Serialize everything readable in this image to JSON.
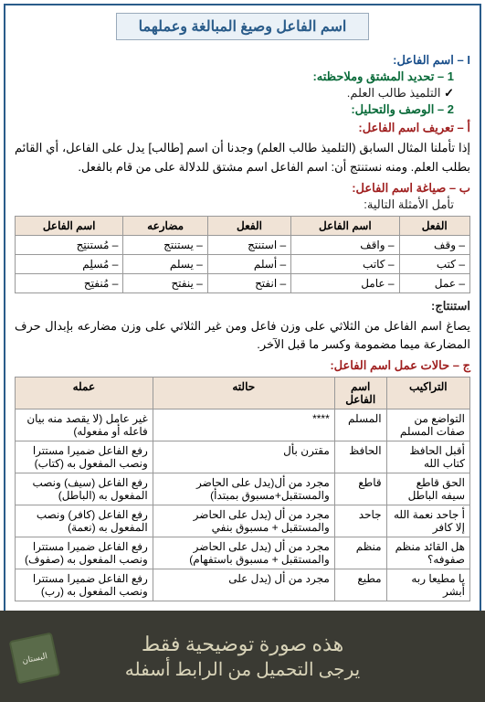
{
  "title": "اسم الفاعل وصيغ المبالغة وعملهما",
  "secI": "I – اسم الفاعل:",
  "sec1": "1 – تحديد المشتق وملاحظته:",
  "bullet1": "التلميذ طالب العلم.",
  "sec2": "2 – الوصف والتحليل:",
  "secA": "أ – تعريف اسم الفاعل:",
  "paraA": "إذا تأملنا المثال السابق (التلميذ طالب العلم) وجدنا أن اسم [طالب] يدل على الفاعل، أي القائم بطلب العلم. ومنه نستنتج أن: اسم الفاعل اسم مشتق للدلالة على من قام بالفعل.",
  "secB": "ب – صياغة اسم الفاعل:",
  "examine": "تأمل الأمثلة التالية:",
  "t1": {
    "headers": [
      "الفعل",
      "اسم الفاعل",
      "الفعل",
      "مضارعه",
      "اسم الفاعل"
    ],
    "rows": [
      [
        "– وقف",
        "– واقف",
        "– استنتج",
        "– يستنتج",
        "– مُستنتِج"
      ],
      [
        "– كتب",
        "– كاتب",
        "– أسلم",
        "– يسلم",
        "– مُسلِم"
      ],
      [
        "– عمل",
        "– عامل",
        "– انفتح",
        "– ينفتح",
        "– مُنفتِح"
      ]
    ]
  },
  "istintaj_label": "استنتاج:",
  "istintaj": "يصاغ اسم الفاعل من الثلاثي على وزن فاعل ومن غير الثلاثي على وزن مضارعه بإبدال حرف المضارعة ميما مضمومة وكسر ما قبل الآخر.",
  "secC": "ج – حالات عمل اسم الفاعل:",
  "t2": {
    "headers": [
      "التراكيب",
      "اسم الفاعل",
      "حالته",
      "عمله"
    ],
    "rows": [
      [
        "التواضع من صفات المسلم",
        "المسلم",
        "****",
        "غير عامل (لا يقصد منه بيان فاعله أو مفعوله)"
      ],
      [
        "أقبل الحافظ كتاب الله",
        "الحافظ",
        "مقترن بأل",
        "رفع الفاعل ضميرا مستترا ونصب المفعول به (كتاب)"
      ],
      [
        "الحق قاطع سيفه الباطل",
        "قاطع",
        "مجرد من أل(يدل على الحاضر والمستقبل+مسبوق بمبتدأ)",
        "رفع الفاعل (سيف) ونصب المفعول به (الباطل)"
      ],
      [
        "أ جاحد نعمة الله إلا كافر",
        "جاحد",
        "مجرد من أل (يدل على الحاضر والمستقبل + مسبوق بنفي",
        "رفع الفاعل (كافر) ونصب المفعول به (نعمة)"
      ],
      [
        "هل القائد منظم صفوفه؟",
        "منظم",
        "مجرد من أل (يدل على الحاضر والمستقبل + مسبوق باستفهام)",
        "رفع الفاعل ضميرا مستترا ونصب المفعول به (صفوف)"
      ],
      [
        "يا مطيعا ربه أبشر",
        "مطيع",
        "مجرد من أل (يدل على",
        "رفع الفاعل ضميرا مستترا ونصب المفعول به (رب)"
      ]
    ]
  },
  "overlay": {
    "line1": "هذه صورة توضيحية فقط",
    "line2": "يرجى التحميل من الرابط أسفله",
    "stamp": "البستان"
  }
}
